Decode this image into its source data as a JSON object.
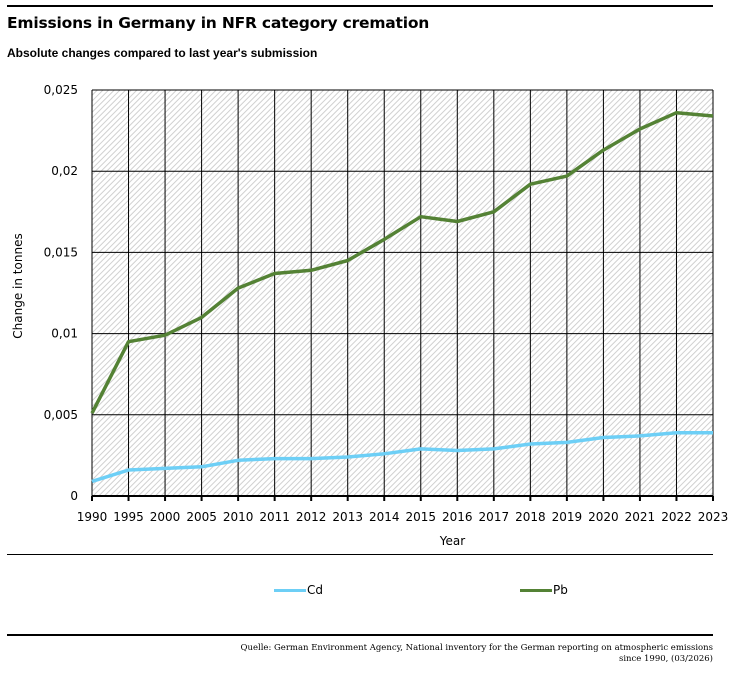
{
  "header": {
    "title": "Emissions in Germany in NFR category cremation",
    "subtitle": "Absolute changes compared to last year's submission"
  },
  "footer": {
    "source_line1": "Quelle: German Environment Agency, National inventory for the German reporting on atmospheric emissions",
    "source_line2": "since 1990, (03/2026)"
  },
  "chart_data": {
    "type": "line",
    "title": "Emissions in Germany in NFR category cremation",
    "subtitle": "Absolute changes compared to last year's submission",
    "xlabel": "Year",
    "ylabel": "Change in tonnes",
    "ylim": [
      0,
      0.025
    ],
    "yticks": [
      0,
      0.005,
      0.01,
      0.015,
      0.02,
      0.025
    ],
    "ytick_labels": [
      "0",
      "0,005",
      "0,01",
      "0,015",
      "0,02",
      "0,025"
    ],
    "grid": true,
    "legend_position": "bottom",
    "categories": [
      "1990",
      "1995",
      "2000",
      "2005",
      "2010",
      "2011",
      "2012",
      "2013",
      "2014",
      "2015",
      "2016",
      "2017",
      "2018",
      "2019",
      "2020",
      "2021",
      "2022",
      "2023"
    ],
    "series": [
      {
        "name": "Cd",
        "color": "#6DCFF6",
        "values": [
          0.0009,
          0.0016,
          0.0017,
          0.0018,
          0.0022,
          0.0023,
          0.0023,
          0.0024,
          0.0026,
          0.0029,
          0.0028,
          0.0029,
          0.0032,
          0.0033,
          0.0036,
          0.0037,
          0.0039,
          0.0039
        ]
      },
      {
        "name": "Pb",
        "color": "#548235",
        "values": [
          0.0051,
          0.0095,
          0.0099,
          0.011,
          0.0128,
          0.0137,
          0.0139,
          0.0145,
          0.0158,
          0.0172,
          0.0169,
          0.0175,
          0.0192,
          0.0197,
          0.0213,
          0.0226,
          0.0236,
          0.0234
        ]
      }
    ]
  }
}
